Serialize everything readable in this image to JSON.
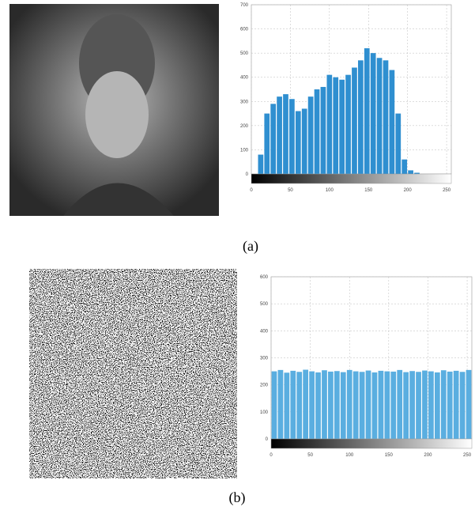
{
  "chart_data": [
    {
      "type": "histogram",
      "caption": "(a)",
      "color": "#2f8fd0",
      "bins": [
        0,
        8,
        16,
        24,
        32,
        40,
        48,
        56,
        64,
        72,
        80,
        88,
        96,
        104,
        112,
        120,
        128,
        136,
        144,
        152,
        160,
        168,
        176,
        184,
        192,
        200,
        208,
        216,
        224,
        232,
        240,
        248,
        256
      ],
      "values": [
        0,
        80,
        250,
        290,
        320,
        330,
        310,
        260,
        270,
        320,
        350,
        360,
        410,
        400,
        390,
        410,
        440,
        470,
        520,
        500,
        480,
        470,
        430,
        250,
        60,
        15,
        5,
        0,
        0,
        0,
        0,
        0
      ],
      "xlim": [
        0,
        256
      ],
      "xticks": [
        0,
        50,
        100,
        150,
        200,
        250
      ],
      "ylim": [
        0,
        700
      ],
      "yticks": [
        0,
        100,
        200,
        300,
        400,
        500,
        600,
        700
      ],
      "grid": true
    },
    {
      "type": "histogram",
      "caption": "(b)",
      "color": "#5aaee0",
      "bins": [
        0,
        8,
        16,
        24,
        32,
        40,
        48,
        56,
        64,
        72,
        80,
        88,
        96,
        104,
        112,
        120,
        128,
        136,
        144,
        152,
        160,
        168,
        176,
        184,
        192,
        200,
        208,
        216,
        224,
        232,
        240,
        248,
        256
      ],
      "values": [
        250,
        255,
        245,
        252,
        248,
        256,
        250,
        246,
        254,
        249,
        251,
        247,
        255,
        250,
        248,
        253,
        246,
        252,
        250,
        249,
        255,
        247,
        251,
        248,
        253,
        250,
        246,
        254,
        249,
        252,
        248,
        255
      ],
      "xlim": [
        0,
        256
      ],
      "xticks": [
        0,
        50,
        100,
        150,
        200,
        250
      ],
      "ylim": [
        0,
        600
      ],
      "yticks": [
        0,
        100,
        200,
        300,
        400,
        500,
        600
      ],
      "grid": true
    }
  ]
}
